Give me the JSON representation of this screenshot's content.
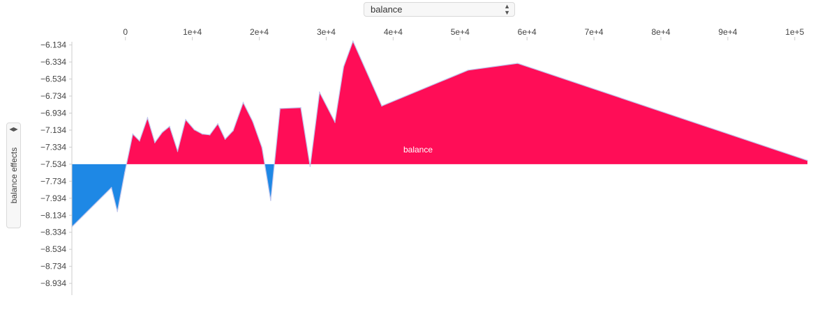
{
  "x_selector": {
    "value": "balance",
    "arrows": "▲▼"
  },
  "y_selector": {
    "label": "balance effects",
    "arrows": "◀▶"
  },
  "chart_data": {
    "type": "area",
    "title": "",
    "xlabel": "",
    "ylabel": "balance effects",
    "series_label": "balance",
    "baseline": -7.534,
    "xlim": [
      -8000,
      102000
    ],
    "ylim": [
      -9.08,
      -6.08
    ],
    "x_ticks": [
      {
        "value": 0,
        "label": "0"
      },
      {
        "value": 10000,
        "label": "1e+4"
      },
      {
        "value": 20000,
        "label": "2e+4"
      },
      {
        "value": 30000,
        "label": "3e+4"
      },
      {
        "value": 40000,
        "label": "4e+4"
      },
      {
        "value": 50000,
        "label": "5e+4"
      },
      {
        "value": 60000,
        "label": "6e+4"
      },
      {
        "value": 70000,
        "label": "7e+4"
      },
      {
        "value": 80000,
        "label": "8e+4"
      },
      {
        "value": 90000,
        "label": "9e+4"
      },
      {
        "value": 100000,
        "label": "1e+5"
      }
    ],
    "y_ticks": [
      {
        "value": -6.134,
        "label": "−6.134"
      },
      {
        "value": -6.334,
        "label": "−6.334"
      },
      {
        "value": -6.534,
        "label": "−6.534"
      },
      {
        "value": -6.734,
        "label": "−6.734"
      },
      {
        "value": -6.934,
        "label": "−6.934"
      },
      {
        "value": -7.134,
        "label": "−7.134"
      },
      {
        "value": -7.334,
        "label": "−7.334"
      },
      {
        "value": -7.534,
        "label": "−7.534"
      },
      {
        "value": -7.734,
        "label": "−7.734"
      },
      {
        "value": -7.934,
        "label": "−7.934"
      },
      {
        "value": -8.134,
        "label": "−8.134"
      },
      {
        "value": -8.334,
        "label": "−8.334"
      },
      {
        "value": -8.534,
        "label": "−8.534"
      },
      {
        "value": -8.734,
        "label": "−8.734"
      },
      {
        "value": -8.934,
        "label": "−8.934"
      }
    ],
    "x": [
      -8000,
      -2100,
      -1200,
      -100,
      1100,
      2100,
      3300,
      4400,
      5500,
      6600,
      7800,
      9000,
      10300,
      11500,
      12600,
      13800,
      14900,
      16100,
      17600,
      19000,
      20400,
      21700,
      23100,
      26200,
      27600,
      29000,
      31300,
      32600,
      34000,
      38300,
      51200,
      58600,
      101900
    ],
    "values": [
      -8.27,
      -7.81,
      -8.09,
      -7.63,
      -7.18,
      -7.26,
      -6.99,
      -7.28,
      -7.16,
      -7.09,
      -7.38,
      -7.01,
      -7.13,
      -7.18,
      -7.19,
      -7.06,
      -7.24,
      -7.14,
      -6.81,
      -7.03,
      -7.34,
      -7.96,
      -6.88,
      -6.87,
      -7.56,
      -6.69,
      -7.04,
      -6.39,
      -6.09,
      -6.85,
      -6.43,
      -6.35,
      -7.49
    ],
    "colors": {
      "positive": "#ff0d57",
      "negative": "#1e88e5",
      "line": "#bfc5ec",
      "axis": "#cccccc"
    },
    "legend": "none",
    "grid": false
  }
}
